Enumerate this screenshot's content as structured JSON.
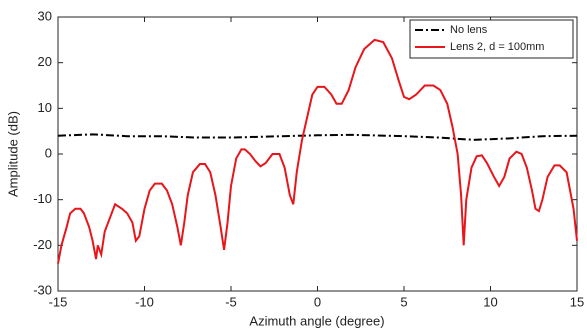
{
  "chart_data": {
    "type": "line",
    "xlabel": "Azimuth angle (degree)",
    "ylabel": "Amplitude (dB)",
    "xlim": [
      -15,
      15
    ],
    "xticks": [
      -15,
      -10,
      -5,
      0,
      5,
      10,
      15
    ],
    "ylim": [
      -30,
      30
    ],
    "yticks": [
      -30,
      -20,
      -10,
      0,
      10,
      20,
      30
    ],
    "grid": false,
    "legend": "upper right",
    "series": [
      {
        "name": "No lens",
        "color": "#000000",
        "style": "dashdot",
        "x": [
          -15,
          -13,
          -11,
          -9,
          -7,
          -5,
          -3,
          0,
          2,
          5,
          7,
          9,
          11,
          13,
          15
        ],
        "values": [
          4,
          4.3,
          3.9,
          3.9,
          3.6,
          3.6,
          3.8,
          4.1,
          4.2,
          3.9,
          3.6,
          3.1,
          3.4,
          3.9,
          4
        ]
      },
      {
        "name": "Lens 2, d = 100mm",
        "color": "#e8161b",
        "style": "solid",
        "x": [
          -15,
          -14.8,
          -14.5,
          -14.3,
          -14,
          -13.7,
          -13.5,
          -13.2,
          -13,
          -12.8,
          -12.7,
          -12.5,
          -12.3,
          -12,
          -11.7,
          -11.3,
          -11,
          -10.7,
          -10.5,
          -10.3,
          -10,
          -9.7,
          -9.4,
          -9,
          -8.7,
          -8.4,
          -8.1,
          -7.9,
          -7.7,
          -7.5,
          -7.2,
          -6.8,
          -6.5,
          -6.2,
          -5.9,
          -5.6,
          -5.4,
          -5.2,
          -5,
          -4.7,
          -4.4,
          -4.2,
          -3.9,
          -3.6,
          -3.3,
          -3,
          -2.6,
          -2.2,
          -1.9,
          -1.6,
          -1.4,
          -1.2,
          -0.9,
          -0.6,
          -0.3,
          0,
          0.4,
          0.8,
          1.1,
          1.4,
          1.8,
          2.2,
          2.7,
          3.3,
          3.8,
          4.3,
          4.7,
          5,
          5.3,
          5.7,
          6.2,
          6.7,
          7.1,
          7.5,
          7.8,
          8.1,
          8.3,
          8.45,
          8.6,
          8.9,
          9.2,
          9.5,
          9.8,
          10.2,
          10.5,
          10.8,
          11.1,
          11.5,
          11.8,
          12.1,
          12.4,
          12.6,
          12.8,
          13,
          13.3,
          13.7,
          14,
          14.4,
          14.8,
          15
        ],
        "values": [
          -24,
          -20,
          -16,
          -13,
          -12,
          -12,
          -13,
          -16,
          -19,
          -23,
          -20,
          -22,
          -17,
          -14,
          -11,
          -12,
          -13,
          -15,
          -19,
          -18,
          -12,
          -8,
          -6.5,
          -6.5,
          -8,
          -11,
          -16,
          -20,
          -15,
          -9,
          -4,
          -2.2,
          -2.2,
          -4,
          -9,
          -16,
          -21,
          -15,
          -7,
          -1,
          1,
          1,
          0,
          -1.5,
          -2.7,
          -2,
          0,
          0,
          -3,
          -9,
          -11,
          -4,
          3,
          8,
          13,
          14.7,
          14.7,
          13,
          11,
          11,
          14,
          19,
          23,
          25,
          24.5,
          21,
          16,
          12.5,
          12,
          13,
          15,
          15,
          14,
          11,
          6,
          0,
          -9,
          -20,
          -10,
          -3,
          -0.5,
          -0.3,
          -2,
          -5,
          -7,
          -5,
          -1,
          0.5,
          0,
          -3,
          -8,
          -12,
          -12.5,
          -10,
          -5,
          -2.5,
          -2.5,
          -4,
          -12,
          -19
        ]
      }
    ]
  }
}
